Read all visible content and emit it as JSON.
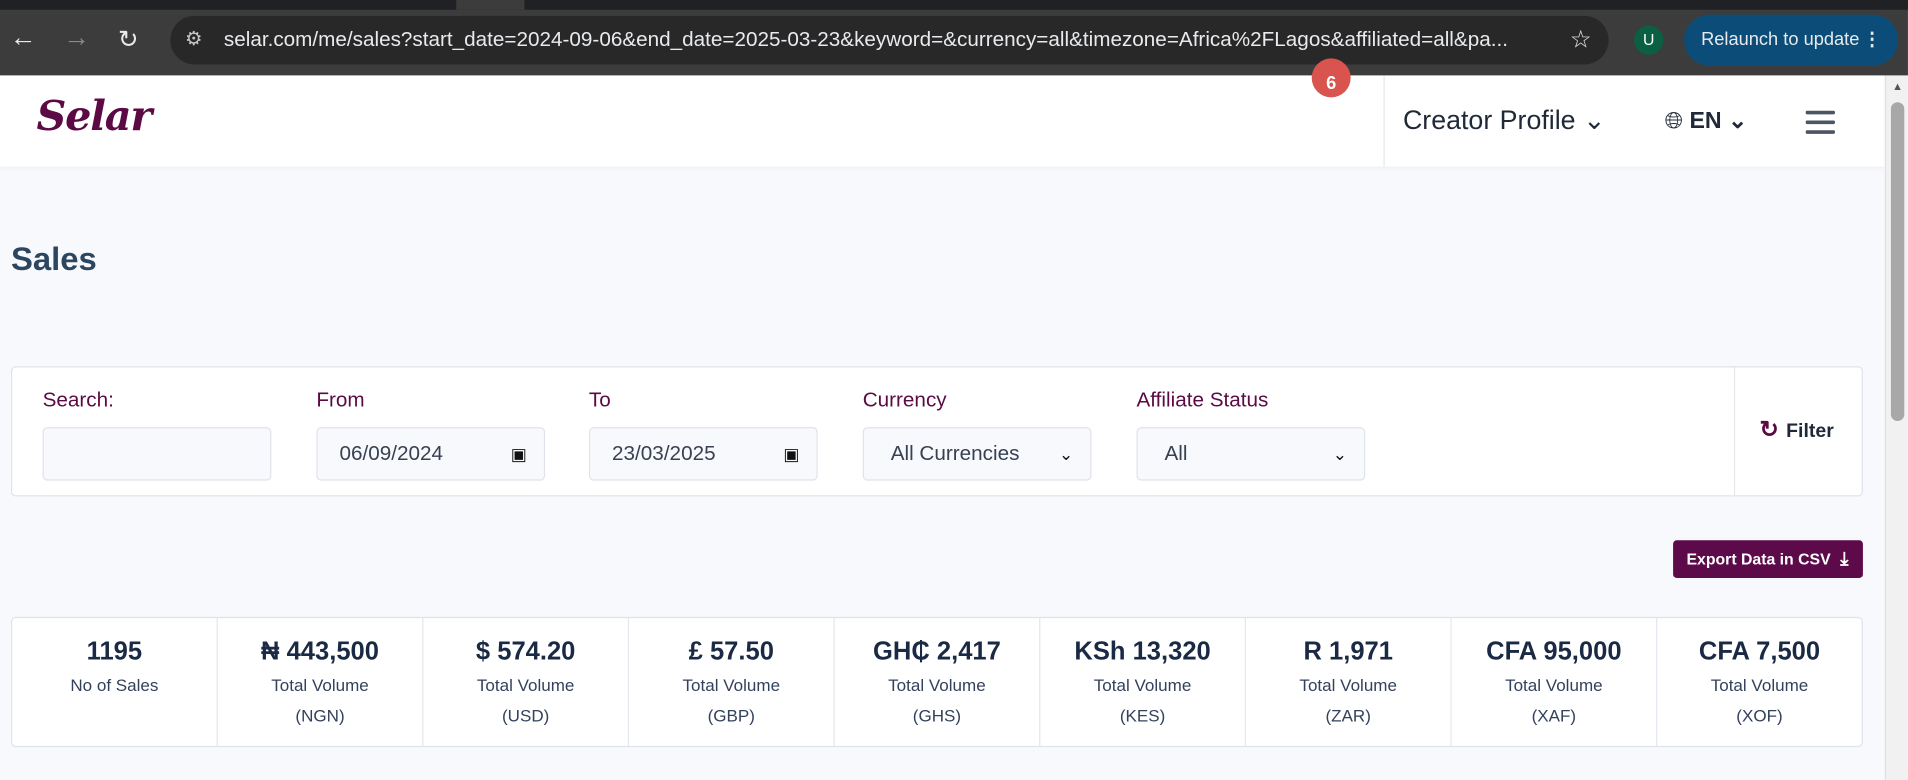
{
  "browser": {
    "url": "selar.com/me/sales?start_date=2024-09-06&end_date=2025-03-23&keyword=&currency=all&timezone=Africa%2FLagos&affiliated=all&pa...",
    "profile_initial": "U",
    "relaunch_label": "Relaunch to update"
  },
  "header": {
    "logo": "Selar",
    "notification_count": "6",
    "profile_menu": "Creator Profile ⌄",
    "language": "EN ⌄"
  },
  "page": {
    "title": "Sales"
  },
  "filters": {
    "search_label": "Search:",
    "search_value": "",
    "from_label": "From",
    "from_value": "06/09/2024",
    "to_label": "To",
    "to_value": "23/03/2025",
    "currency_label": "Currency",
    "currency_value": "All Currencies",
    "affiliate_label": "Affiliate Status",
    "affiliate_value": "All",
    "filter_button": "Filter"
  },
  "export_label": "Export Data in CSV",
  "stats": [
    {
      "value": "1195",
      "label": "No of Sales",
      "currency": ""
    },
    {
      "value": "₦ 443,500",
      "label": "Total Volume",
      "currency": "(NGN)"
    },
    {
      "value": "$ 574.20",
      "label": "Total Volume",
      "currency": "(USD)"
    },
    {
      "value": "£ 57.50",
      "label": "Total Volume",
      "currency": "(GBP)"
    },
    {
      "value": "GH₵ 2,417",
      "label": "Total Volume",
      "currency": "(GHS)"
    },
    {
      "value": "KSh 13,320",
      "label": "Total Volume",
      "currency": "(KES)"
    },
    {
      "value": "R 1,971",
      "label": "Total Volume",
      "currency": "(ZAR)"
    },
    {
      "value": "CFA 95,000",
      "label": "Total Volume",
      "currency": "(XAF)"
    },
    {
      "value": "CFA 7,500",
      "label": "Total Volume",
      "currency": "(XOF)"
    }
  ],
  "colors": {
    "brand": "#5c0a44",
    "badge": "#d9534f",
    "relaunch": "#0b4d78"
  }
}
